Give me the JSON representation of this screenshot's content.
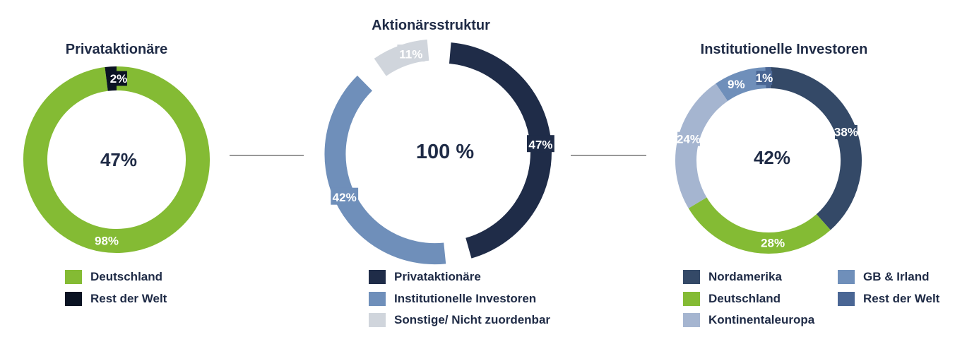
{
  "chart_data": [
    {
      "type": "pie",
      "variant": "donut",
      "title": "Privataktionäre",
      "center_label": "47%",
      "slices": [
        {
          "label": "Deutschland",
          "value": 98,
          "value_label": "98%",
          "color": "#84bb34"
        },
        {
          "label": "Rest der Welt",
          "value": 2,
          "value_label": "2%",
          "color": "#0b1323"
        }
      ],
      "legend": [
        "Deutschland",
        "Rest der Welt"
      ]
    },
    {
      "type": "pie",
      "variant": "donut",
      "title": "Aktionärsstruktur",
      "center_label": "100 %",
      "slices": [
        {
          "label": "Privataktionäre",
          "value": 47,
          "value_label": "47%",
          "color": "#1f2c48"
        },
        {
          "label": "Institutionelle Investoren",
          "value": 42,
          "value_label": "42%",
          "color": "#6f8fba"
        },
        {
          "label": "Sonstige/ Nicht zuordenbar",
          "value": 11,
          "value_label": "11%",
          "color": "#d0d5dc"
        }
      ],
      "legend": [
        "Privataktionäre",
        "Institutionelle Investoren",
        "Sonstige/ Nicht zuordenbar"
      ]
    },
    {
      "type": "pie",
      "variant": "donut",
      "title": "Institutionelle Investoren",
      "center_label": "42%",
      "slices": [
        {
          "label": "Nordamerika",
          "value": 38,
          "value_label": "38%",
          "color": "#344967"
        },
        {
          "label": "Deutschland",
          "value": 28,
          "value_label": "28%",
          "color": "#84bb34"
        },
        {
          "label": "Kontinentaleuropa",
          "value": 24,
          "value_label": "24%",
          "color": "#a5b5d0"
        },
        {
          "label": "GB & Irland",
          "value": 9,
          "value_label": "9%",
          "color": "#6f8fba"
        },
        {
          "label": "Rest der Welt",
          "value": 1,
          "value_label": "1%",
          "color": "#4a6694"
        }
      ],
      "legend": [
        "Nordamerika",
        "GB & Irland",
        "Deutschland",
        "Rest der Welt",
        "Kontinentaleuropa"
      ]
    }
  ]
}
